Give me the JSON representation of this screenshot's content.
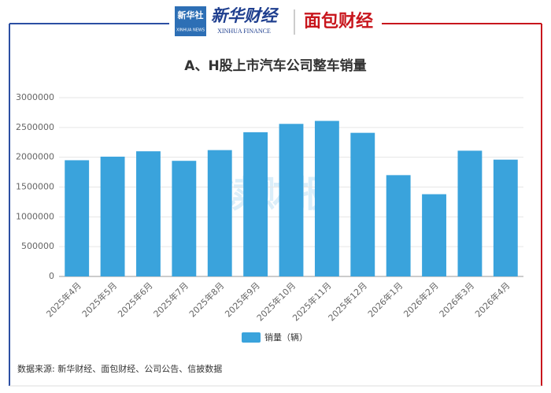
{
  "header": {
    "logo_left": "新华社",
    "logo_left_sub": "XINHUA NEWS",
    "logo_mid": "新华财经",
    "logo_mid_sub": "XINHUA FINANCE",
    "logo_right": "面包财经"
  },
  "chart_data": {
    "type": "bar",
    "title": "A、H股上市汽车公司整车销量",
    "categories": [
      "2025年4月",
      "2025年5月",
      "2025年6月",
      "2025年7月",
      "2025年8月",
      "2025年9月",
      "2025年10月",
      "2025年11月",
      "2025年12月",
      "2026年1月",
      "2026年2月",
      "2026年3月",
      "2026年4月"
    ],
    "series": [
      {
        "name": "销量（辆）",
        "color": "#3aa3dc",
        "values": [
          1950000,
          2010000,
          2100000,
          1940000,
          2120000,
          2420000,
          2560000,
          2610000,
          2410000,
          1700000,
          1380000,
          2110000,
          1960000
        ]
      }
    ],
    "ylim": [
      0,
      3000000
    ],
    "yticks": [
      0,
      500000,
      1000000,
      1500000,
      2000000,
      2500000,
      3000000
    ],
    "grid": true,
    "legend": "bottom",
    "watermark": "读财报",
    "source": "数据来源: 新华财经、面包财经、公司公告、信披数据"
  }
}
